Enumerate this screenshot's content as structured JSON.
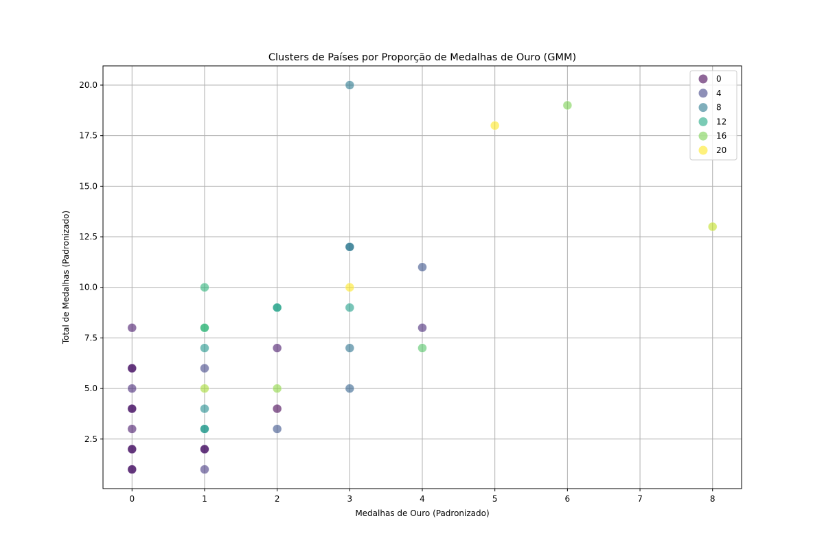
{
  "chart_data": {
    "type": "scatter",
    "title": "Clusters de Países por Proporção de Medalhas de Ouro (GMM)",
    "xlabel": "Medalhas de Ouro (Padronizado)",
    "ylabel": "Total de Medalhas (Padronizado)",
    "xlim": [
      -0.4,
      8.4
    ],
    "ylim": [
      0.05,
      20.95
    ],
    "x_ticks": [
      0,
      1,
      2,
      3,
      4,
      5,
      6,
      7,
      8
    ],
    "y_ticks": [
      2.5,
      5.0,
      7.5,
      10.0,
      12.5,
      15.0,
      17.5,
      20.0
    ],
    "grid": true,
    "colormap": "viridis",
    "legend": {
      "placement": "top-right",
      "entries": [
        {
          "label": "0",
          "color": "#440154"
        },
        {
          "label": "4",
          "color": "#414487"
        },
        {
          "label": "8",
          "color": "#2a788e"
        },
        {
          "label": "12",
          "color": "#22a884"
        },
        {
          "label": "16",
          "color": "#7ad151"
        },
        {
          "label": "20",
          "color": "#fde725"
        }
      ]
    },
    "points": [
      {
        "x": 0,
        "y": 8,
        "cluster": 1,
        "color": "#48186a"
      },
      {
        "x": 0,
        "y": 6,
        "cluster": 0,
        "color": "#440154"
      },
      {
        "x": 0,
        "y": 6,
        "cluster": 1,
        "color": "#48186a"
      },
      {
        "x": 0,
        "y": 5,
        "cluster": 2,
        "color": "#482878"
      },
      {
        "x": 0,
        "y": 4,
        "cluster": 0,
        "color": "#440154"
      },
      {
        "x": 0,
        "y": 4,
        "cluster": 1,
        "color": "#48186a"
      },
      {
        "x": 0,
        "y": 3,
        "cluster": 1,
        "color": "#48186a"
      },
      {
        "x": 0,
        "y": 2,
        "cluster": 0,
        "color": "#440154"
      },
      {
        "x": 0,
        "y": 2,
        "cluster": 1,
        "color": "#48186a"
      },
      {
        "x": 0,
        "y": 1,
        "cluster": 0,
        "color": "#440154"
      },
      {
        "x": 0,
        "y": 1,
        "cluster": 1,
        "color": "#48186a"
      },
      {
        "x": 1,
        "y": 10,
        "cluster": 13,
        "color": "#2fb47c"
      },
      {
        "x": 1,
        "y": 8,
        "cluster": 14,
        "color": "#3dbc74"
      },
      {
        "x": 1,
        "y": 8,
        "cluster": 13,
        "color": "#2fb47c"
      },
      {
        "x": 1,
        "y": 7,
        "cluster": 10,
        "color": "#1f958b"
      },
      {
        "x": 1,
        "y": 6,
        "cluster": 4,
        "color": "#414487"
      },
      {
        "x": 1,
        "y": 5,
        "cluster": 18,
        "color": "#a5db36"
      },
      {
        "x": 1,
        "y": 4,
        "cluster": 9,
        "color": "#228c8d"
      },
      {
        "x": 1,
        "y": 3,
        "cluster": 11,
        "color": "#1f9e89"
      },
      {
        "x": 1,
        "y": 3,
        "cluster": 10,
        "color": "#1f958b"
      },
      {
        "x": 1,
        "y": 2,
        "cluster": 0,
        "color": "#440154"
      },
      {
        "x": 1,
        "y": 2,
        "cluster": 1,
        "color": "#48186a"
      },
      {
        "x": 1,
        "y": 1,
        "cluster": 3,
        "color": "#453781"
      },
      {
        "x": 2,
        "y": 9,
        "cluster": 12,
        "color": "#22a884"
      },
      {
        "x": 2,
        "y": 9,
        "cluster": 11,
        "color": "#1f9e89"
      },
      {
        "x": 2,
        "y": 7,
        "cluster": 1,
        "color": "#48186a"
      },
      {
        "x": 2,
        "y": 5,
        "cluster": 17,
        "color": "#8fd744"
      },
      {
        "x": 2,
        "y": 4,
        "cluster": 0,
        "color": "#440154"
      },
      {
        "x": 2,
        "y": 3,
        "cluster": 5,
        "color": "#3b528b"
      },
      {
        "x": 3,
        "y": 20,
        "cluster": 8,
        "color": "#2a788e"
      },
      {
        "x": 3,
        "y": 12,
        "cluster": 7,
        "color": "#2c728e"
      },
      {
        "x": 3,
        "y": 12,
        "cluster": 8,
        "color": "#2a788e"
      },
      {
        "x": 3,
        "y": 10,
        "cluster": 20,
        "color": "#fde725"
      },
      {
        "x": 3,
        "y": 9,
        "cluster": 11,
        "color": "#1f9e89"
      },
      {
        "x": 3,
        "y": 7,
        "cluster": 7,
        "color": "#2c728e"
      },
      {
        "x": 3,
        "y": 5,
        "cluster": 6,
        "color": "#33638d"
      },
      {
        "x": 4,
        "y": 11,
        "cluster": 5,
        "color": "#3b528b"
      },
      {
        "x": 4,
        "y": 8,
        "cluster": 2,
        "color": "#482878"
      },
      {
        "x": 4,
        "y": 7,
        "cluster": 15,
        "color": "#54c568"
      },
      {
        "x": 5,
        "y": 18,
        "cluster": 20,
        "color": "#fde725"
      },
      {
        "x": 6,
        "y": 19,
        "cluster": 16,
        "color": "#7ad151"
      },
      {
        "x": 8,
        "y": 13,
        "cluster": 19,
        "color": "#c2df23"
      }
    ]
  }
}
